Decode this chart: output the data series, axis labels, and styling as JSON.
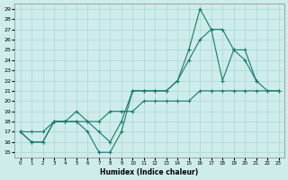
{
  "title": "",
  "xlabel": "Humidex (Indice chaleur)",
  "background_color": "#ceecea",
  "grid_color": "#a8d8d4",
  "line_color": "#1a7a6e",
  "xlim": [
    -0.5,
    23.5
  ],
  "ylim": [
    14.5,
    29.5
  ],
  "xticks": [
    0,
    1,
    2,
    3,
    4,
    5,
    6,
    7,
    8,
    9,
    10,
    11,
    12,
    13,
    14,
    15,
    16,
    17,
    18,
    19,
    20,
    21,
    22,
    23
  ],
  "yticks": [
    15,
    16,
    17,
    18,
    19,
    20,
    21,
    22,
    23,
    24,
    25,
    26,
    27,
    28,
    29
  ],
  "series1": {
    "x": [
      0,
      1,
      2,
      3,
      4,
      5,
      6,
      7,
      8,
      9,
      10,
      11,
      12,
      13,
      14,
      15,
      16,
      17,
      18,
      19,
      20,
      21
    ],
    "y": [
      17,
      16,
      16,
      18,
      18,
      18,
      17,
      15,
      15,
      17,
      21,
      21,
      21,
      21,
      22,
      25,
      29,
      27,
      22,
      25,
      25,
      22
    ]
  },
  "series2": {
    "x": [
      0,
      1,
      2,
      3,
      4,
      5,
      6,
      7,
      8,
      9,
      10,
      11,
      12,
      13,
      14,
      15,
      16,
      17,
      18,
      19,
      20,
      21,
      22,
      23
    ],
    "y": [
      17,
      16,
      16,
      18,
      18,
      19,
      18,
      17,
      16,
      18,
      21,
      21,
      21,
      21,
      22,
      24,
      26,
      27,
      27,
      25,
      24,
      22,
      21,
      21
    ]
  },
  "series3": {
    "x": [
      0,
      1,
      2,
      3,
      4,
      5,
      6,
      7,
      8,
      9,
      10,
      11,
      12,
      13,
      14,
      15,
      16,
      17,
      18,
      19,
      20,
      21,
      22,
      23
    ],
    "y": [
      17,
      17,
      17,
      18,
      18,
      18,
      18,
      18,
      19,
      19,
      19,
      20,
      20,
      20,
      20,
      20,
      21,
      21,
      21,
      21,
      21,
      21,
      21,
      21
    ]
  }
}
